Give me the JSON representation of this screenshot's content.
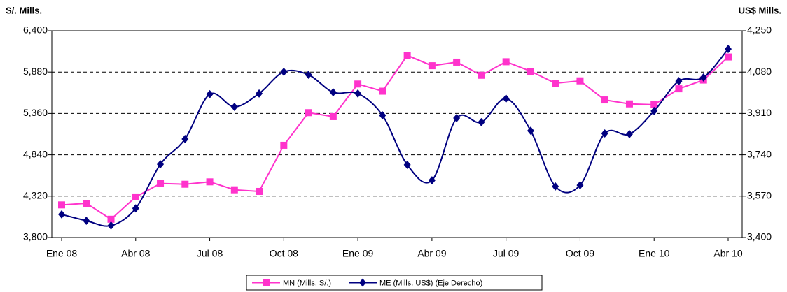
{
  "chart_data": {
    "type": "line",
    "y_label": "S/. Mills.",
    "y2_label": "US$ Mills.",
    "categories": [
      "Ene 08",
      null,
      null,
      "Abr 08",
      null,
      null,
      "Jul 08",
      null,
      null,
      "Oct 08",
      null,
      null,
      "Ene 09",
      null,
      null,
      "Abr 09",
      null,
      null,
      "Jul 09",
      null,
      null,
      "Oct 09",
      null,
      null,
      "Ene 10",
      null,
      null,
      "Abr 10"
    ],
    "series": [
      {
        "name": "MN (Mills. S/.)",
        "color": "#ff33cc",
        "marker": "square",
        "smooth": false,
        "values": [
          4210,
          4230,
          4030,
          4310,
          4480,
          4470,
          4500,
          4400,
          4380,
          4960,
          5370,
          5320,
          5730,
          5640,
          6090,
          5960,
          6005,
          5840,
          6010,
          5890,
          5740,
          5770,
          5530,
          5480,
          5470,
          5670,
          5780,
          6070
        ]
      },
      {
        "name": "ME (Mills. US$) (Eje Derecho)",
        "color": "#000080",
        "marker": "diamond",
        "smooth": true,
        "axis": "y2",
        "values": [
          3495,
          3469,
          3449,
          3520,
          3701,
          3805,
          3989,
          3937,
          3992,
          4081,
          4069,
          3997,
          3992,
          3902,
          3699,
          3635,
          3891,
          3874,
          3971,
          3839,
          3610,
          3615,
          3828,
          3825,
          3920,
          4043,
          4058,
          4175
        ]
      }
    ],
    "ylim": [
      3800,
      6400
    ],
    "yticks": [
      {
        "value": 3800,
        "label": "3,800"
      },
      {
        "value": 4320,
        "label": "4,320"
      },
      {
        "value": 4840,
        "label": "4,840"
      },
      {
        "value": 5360,
        "label": "5,360"
      },
      {
        "value": 5880,
        "label": "5,880"
      },
      {
        "value": 6400,
        "label": "6,400"
      }
    ],
    "y2lim": [
      3400,
      4250
    ],
    "y2ticks": [
      {
        "value": 3400,
        "label": "3,400"
      },
      {
        "value": 3570,
        "label": "3,570"
      },
      {
        "value": 3740,
        "label": "3,740"
      },
      {
        "value": 3910,
        "label": "3,910"
      },
      {
        "value": 4080,
        "label": "4,080"
      },
      {
        "value": 4250,
        "label": "4,250"
      }
    ],
    "grid": true,
    "legend": "bottom"
  }
}
